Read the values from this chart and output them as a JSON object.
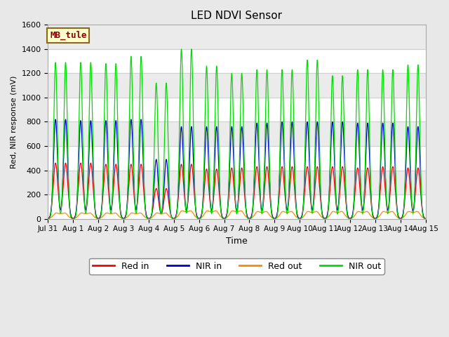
{
  "title": "LED NDVI Sensor",
  "ylabel": "Red, NIR response (mV)",
  "xlabel": "Time",
  "ylim": [
    0,
    1600
  ],
  "fig_facecolor": "#e8e8e8",
  "plot_facecolor": "#ffffff",
  "annotation_text": "MB_tule",
  "annotation_color": "#8B0000",
  "annotation_bg": "#ffffcc",
  "annotation_border": "#8B6914",
  "colors": {
    "red_in": "#ff0000",
    "nir_in": "#0000cc",
    "red_out": "#ff8800",
    "nir_out": "#00dd00"
  },
  "legend_labels": [
    "Red in",
    "NIR in",
    "Red out",
    "NIR out"
  ],
  "xtick_labels": [
    "Jul 31",
    "Aug 1",
    "Aug 2",
    "Aug 3",
    "Aug 4",
    "Aug 5",
    "Aug 6",
    "Aug 7",
    "Aug 8",
    "Aug 9",
    "Aug 10",
    "Aug 11",
    "Aug 12",
    "Aug 13",
    "Aug 14",
    "Aug 15"
  ],
  "ytick_labels": [
    0,
    200,
    400,
    600,
    800,
    1000,
    1200,
    1400,
    1600
  ],
  "nir_out_peaks": [
    1290,
    1290,
    1280,
    1340,
    1120,
    1400,
    1260,
    1200,
    1230,
    1230,
    1310,
    1180,
    1230,
    1230,
    1270
  ],
  "nir_in_peaks": [
    820,
    810,
    810,
    820,
    490,
    760,
    760,
    760,
    790,
    800,
    800,
    800,
    790,
    790,
    760
  ],
  "red_in_peaks": [
    460,
    460,
    450,
    450,
    250,
    450,
    410,
    420,
    430,
    430,
    430,
    430,
    420,
    430,
    420
  ],
  "red_out_peaks": [
    40,
    40,
    40,
    40,
    40,
    55,
    55,
    55,
    50,
    50,
    50,
    50,
    50,
    50,
    50
  ],
  "n_days": 15,
  "pts_per_day": 500
}
